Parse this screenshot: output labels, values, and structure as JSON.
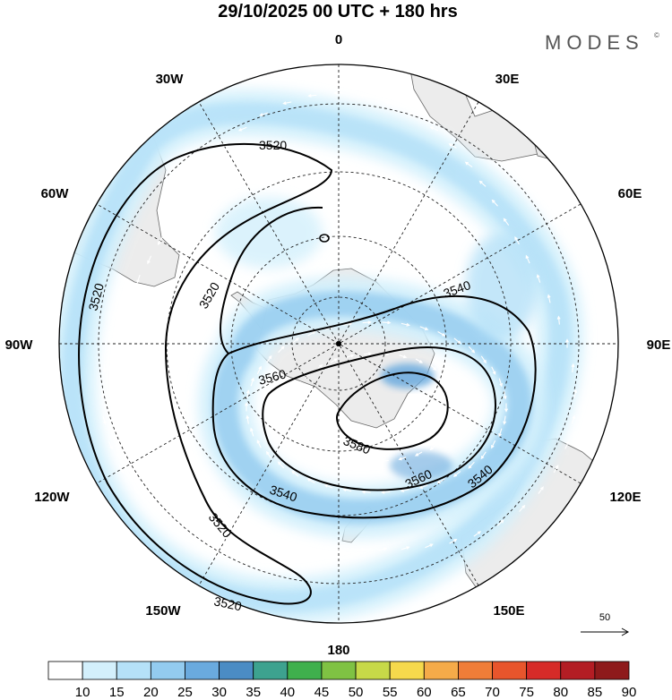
{
  "header": {
    "title": "29/10/2025  00 UTC  + 180 hrs",
    "brand": "MODES",
    "brand_mark": "©"
  },
  "map": {
    "projection": "south-polar-stereographic",
    "longitude_labels": {
      "lon_0": "0",
      "lon_30e": "30E",
      "lon_60e": "60E",
      "lon_90e": "90E",
      "lon_120e": "120E",
      "lon_150e": "150E",
      "lon_180": "180",
      "lon_150w": "150W",
      "lon_120w": "120W",
      "lon_90w": "90W",
      "lon_60w": "60W",
      "lon_30w": "30W"
    },
    "contour_unit_hint": "geopotential height (gpm)",
    "contour_labels": {
      "c1": "3520",
      "c2": "3520",
      "c3": "3520",
      "c4": "3520",
      "c5": "3520",
      "c6": "3540",
      "c7": "3540",
      "c8": "3540",
      "c9": "3560",
      "c10": "3560",
      "c11": "3580"
    },
    "reference_vector": {
      "label": "50"
    },
    "colors": {
      "land": "#ececec",
      "coast": "#555555",
      "grid": "#222222",
      "contour": "#000000",
      "wind_vectors": "#ffffff"
    }
  },
  "colorbar": {
    "ticks": [
      "10",
      "15",
      "20",
      "25",
      "30",
      "35",
      "40",
      "45",
      "50",
      "55",
      "60",
      "65",
      "70",
      "75",
      "80",
      "85",
      "90"
    ],
    "colors": [
      "#ffffff",
      "#d3f0fc",
      "#b5e1f8",
      "#93cbef",
      "#6aaade",
      "#4b8cc4",
      "#3da28f",
      "#3fb04d",
      "#7fc243",
      "#c7d948",
      "#f6d94c",
      "#f5ab49",
      "#f07d38",
      "#e8552c",
      "#d62b28",
      "#b31d24",
      "#8e1a1b"
    ]
  }
}
